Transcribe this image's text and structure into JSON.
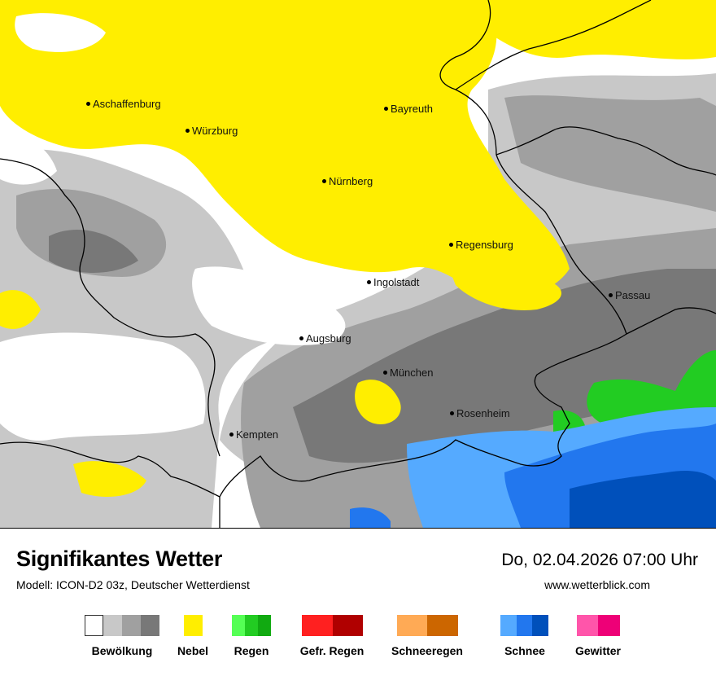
{
  "map": {
    "cities": [
      {
        "name": "Aschaffenburg"
      },
      {
        "name": "Würzburg"
      },
      {
        "name": "Bayreuth"
      },
      {
        "name": "Nürnberg"
      },
      {
        "name": "Regensburg"
      },
      {
        "name": "Ingolstadt"
      },
      {
        "name": "Passau"
      },
      {
        "name": "Augsburg"
      },
      {
        "name": "München"
      },
      {
        "name": "Rosenheim"
      },
      {
        "name": "Kempten"
      }
    ]
  },
  "footer": {
    "title": "Signifikantes Wetter",
    "subtitle": "Modell: ICON-D2 03z, Deutscher Wetterdienst",
    "datetime": "Do, 02.04.2026 07:00 Uhr",
    "website": "www.wetterblick.com"
  },
  "legend": [
    {
      "label": "Bewölkung",
      "colors": [
        "#ffffff",
        "#c8c8c8",
        "#a0a0a0",
        "#787878"
      ]
    },
    {
      "label": "Nebel",
      "colors": [
        "#ffee00"
      ]
    },
    {
      "label": "Regen",
      "colors": [
        "#55ff55",
        "#22cc22",
        "#11aa11"
      ]
    },
    {
      "label": "Gefr. Regen",
      "colors": [
        "#ff2020",
        "#b00000"
      ]
    },
    {
      "label": "Schneeregen",
      "colors": [
        "#ffaa55",
        "#cc6600"
      ]
    },
    {
      "label": "Schnee",
      "colors": [
        "#55aaff",
        "#2277ee",
        "#0050bb"
      ]
    },
    {
      "label": "Gewitter",
      "colors": [
        "#ff55aa",
        "#ee0077"
      ]
    }
  ]
}
